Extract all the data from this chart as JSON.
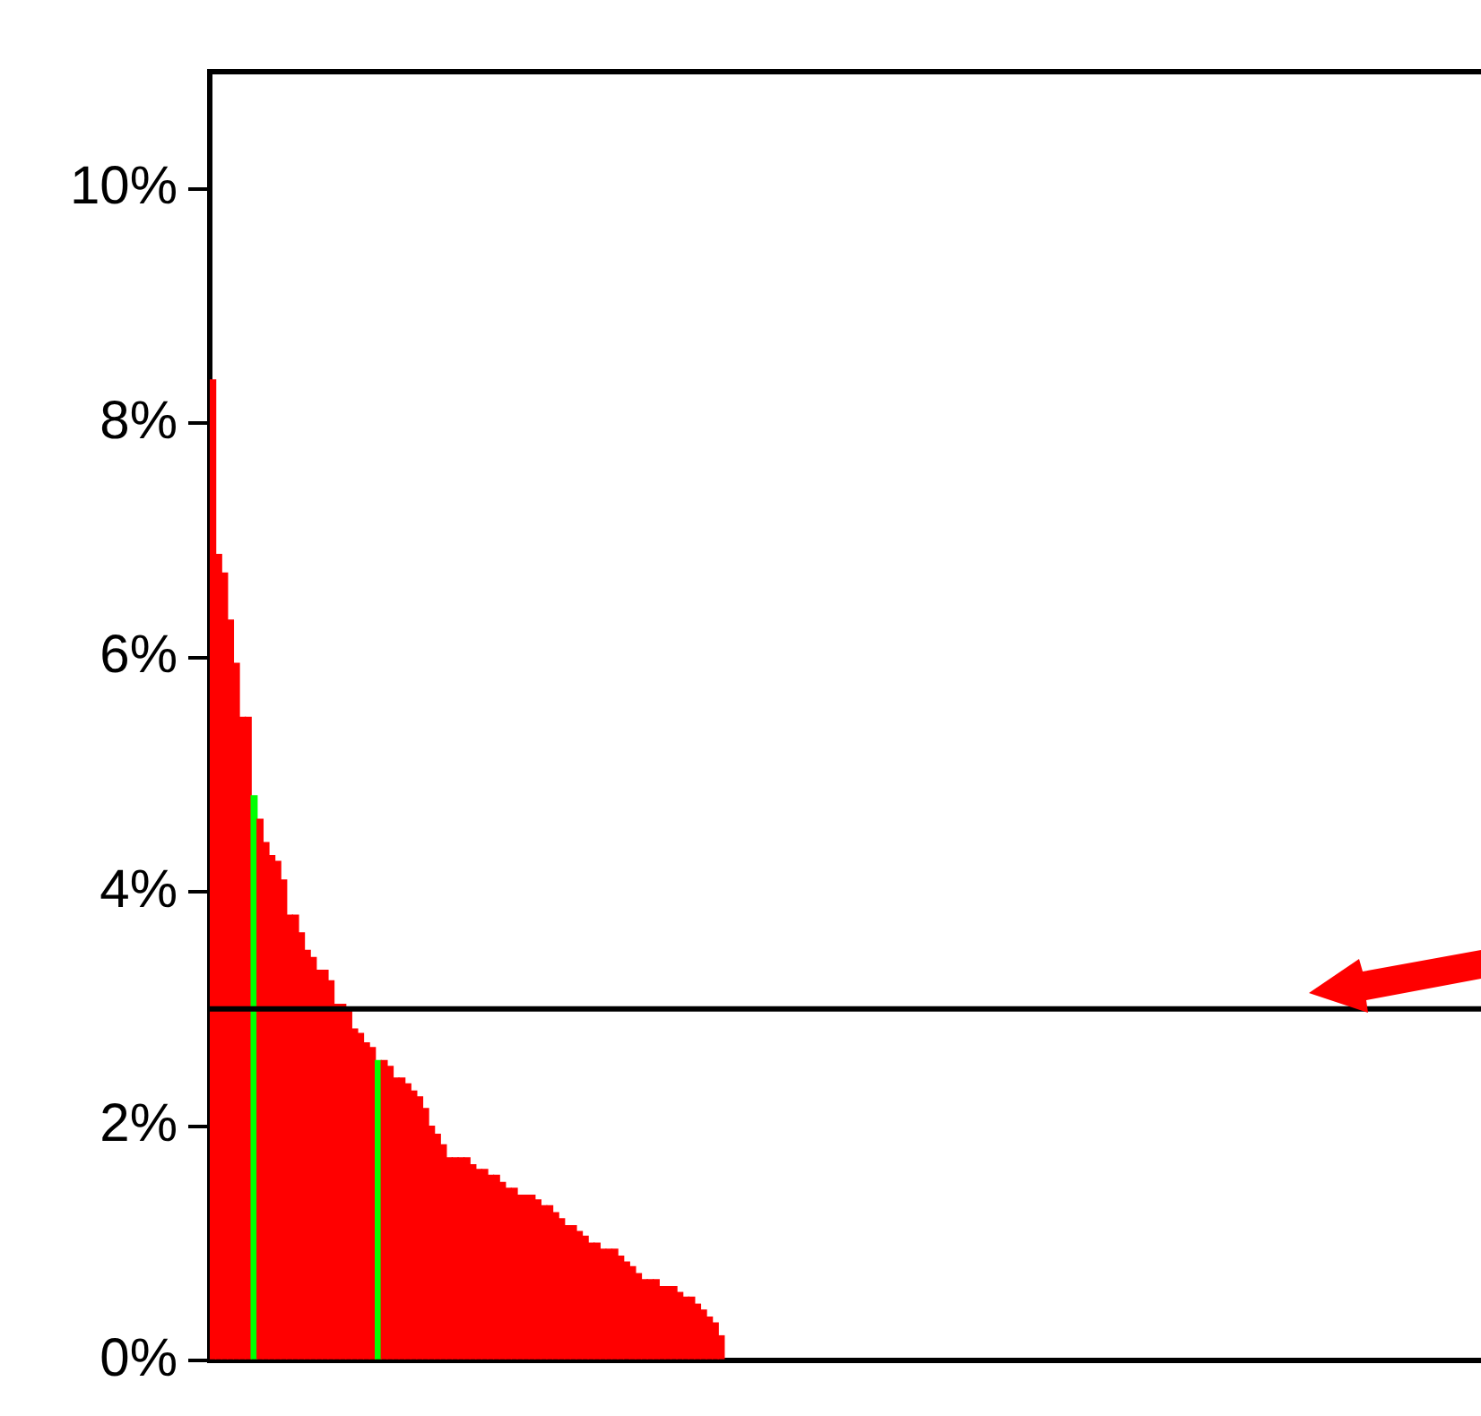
{
  "chart_data": {
    "type": "bar",
    "categories": [
      null,
      null,
      null,
      null,
      null,
      null,
      null,
      null,
      null,
      null,
      null,
      null,
      null,
      null,
      null,
      null,
      null,
      null,
      null,
      null,
      null,
      null,
      null,
      null,
      null,
      null,
      null,
      null,
      null,
      null,
      null,
      null,
      null,
      null,
      null,
      null,
      null,
      null,
      null,
      null,
      null,
      null,
      null,
      null,
      null,
      null,
      null,
      null,
      null,
      null,
      null,
      null,
      null,
      null,
      null,
      null,
      null,
      null,
      null,
      null,
      null,
      null,
      null,
      null,
      null,
      null,
      null,
      null,
      null,
      null,
      null,
      null,
      null,
      null,
      null,
      null,
      null,
      null,
      null,
      null,
      null,
      null,
      null,
      null,
      null,
      null,
      null,
      null,
      null,
      null,
      null,
      null,
      null,
      null,
      null,
      null,
      null,
      null,
      null,
      null,
      null,
      null,
      null,
      null,
      null,
      null,
      null,
      null,
      null,
      null,
      null,
      null,
      null,
      null,
      null,
      null,
      null,
      null,
      null,
      null,
      null,
      null,
      null,
      null,
      null,
      null,
      null,
      null,
      null,
      null,
      null,
      null,
      null,
      null,
      null,
      null,
      null,
      null,
      null,
      null,
      null,
      null,
      null,
      null,
      null,
      null,
      null,
      null,
      null,
      null,
      null,
      null,
      null,
      null,
      null,
      null,
      null,
      null,
      null,
      null,
      null,
      null,
      null,
      null,
      null,
      null,
      null,
      null,
      null,
      null,
      null,
      null,
      null,
      null,
      null,
      null,
      null,
      null,
      null,
      null,
      null,
      null,
      null,
      null,
      null,
      null,
      null,
      null,
      null,
      null,
      null,
      null,
      null,
      null,
      null,
      null,
      null,
      null,
      null,
      null,
      null,
      null,
      null,
      null,
      null,
      null,
      null,
      null,
      null,
      null,
      null,
      null,
      null,
      null,
      null
    ],
    "values": [
      8.37,
      6.88,
      6.72,
      6.32,
      5.95,
      5.49,
      5.49,
      4.82,
      4.62,
      4.42,
      4.31,
      4.26,
      4.1,
      3.8,
      3.8,
      3.65,
      3.5,
      3.44,
      3.33,
      3.33,
      3.24,
      3.04,
      3.04,
      2.99,
      2.83,
      2.79,
      2.71,
      2.67,
      2.56,
      2.56,
      2.51,
      2.41,
      2.41,
      2.36,
      2.3,
      2.25,
      2.15,
      2.0,
      1.93,
      1.84,
      1.73,
      1.73,
      1.73,
      1.73,
      1.67,
      1.63,
      1.63,
      1.58,
      1.58,
      1.52,
      1.47,
      1.47,
      1.41,
      1.41,
      1.41,
      1.37,
      1.32,
      1.32,
      1.26,
      1.21,
      1.15,
      1.15,
      1.1,
      1.06,
      1.0,
      1.0,
      0.95,
      0.95,
      0.95,
      0.89,
      0.84,
      0.8,
      0.74,
      0.69,
      0.69,
      0.69,
      0.63,
      0.63,
      0.63,
      0.58,
      0.54,
      0.54,
      0.48,
      0.43,
      0.37,
      0.32,
      0.21,
      null,
      null,
      null,
      null,
      null,
      null,
      null,
      null,
      null,
      null,
      null,
      null,
      null,
      null,
      null,
      null,
      null,
      null,
      null,
      null,
      null,
      null,
      null,
      null,
      null,
      null,
      null,
      null,
      null,
      null,
      null,
      null,
      null,
      null,
      null,
      null,
      null,
      null,
      null,
      null,
      null,
      null,
      null,
      null,
      null,
      null,
      null,
      null,
      null,
      null,
      null,
      null,
      null,
      null,
      null,
      null,
      null,
      null,
      null,
      null,
      null,
      null,
      null,
      null,
      null,
      null,
      null,
      null,
      null,
      null,
      null,
      null,
      null,
      null,
      null,
      null,
      null,
      null,
      null,
      null,
      null,
      null,
      null,
      null,
      null,
      null,
      null,
      null,
      null,
      null,
      null,
      null,
      null,
      null,
      null,
      null,
      null,
      null,
      null,
      null,
      null,
      null,
      null,
      null,
      null,
      null,
      null,
      null,
      null,
      null,
      null,
      null,
      null,
      null,
      null,
      null,
      null,
      null,
      null,
      null,
      null,
      null,
      null,
      null,
      null,
      null,
      null,
      null
    ],
    "colors": [
      "#ff0000",
      "#ff0000",
      "#ff0000",
      "#ff0000",
      "#ff0000",
      "#ff0000",
      "#ff0000",
      "#00ff00",
      "#ff0000",
      "#ff0000",
      "#ff0000",
      "#ff0000",
      "#ff0000",
      "#ff0000",
      "#ff0000",
      "#ff0000",
      "#ff0000",
      "#ff0000",
      "#ff0000",
      "#ff0000",
      "#ff0000",
      "#ff0000",
      "#ff0000",
      "#ff0000",
      "#ff0000",
      "#ff0000",
      "#ff0000",
      "#ff0000",
      "#00ff00",
      "#ff0000",
      "#ff0000",
      "#ff0000",
      "#ff0000",
      "#ff0000",
      "#ff0000",
      "#ff0000",
      "#ff0000",
      "#ff0000",
      "#ff0000",
      "#ff0000",
      "#ff0000",
      "#ff0000",
      "#ff0000",
      "#ff0000",
      "#ff0000",
      "#ff0000",
      "#ff0000",
      "#ff0000",
      "#ff0000",
      "#ff0000",
      "#ff0000",
      "#ff0000",
      "#ff0000",
      "#ff0000",
      "#ff0000",
      "#ff0000",
      "#ff0000",
      "#ff0000",
      "#ff0000",
      "#ff0000",
      "#ff0000",
      "#ff0000",
      "#ff0000",
      "#ff0000",
      "#ff0000",
      "#ff0000",
      "#ff0000",
      "#ff0000",
      "#ff0000",
      "#ff0000",
      "#ff0000",
      "#ff0000",
      "#ff0000",
      "#ff0000",
      "#ff0000",
      "#ff0000",
      "#ff0000",
      "#ff0000",
      "#ff0000",
      "#ff0000",
      "#ff0000",
      "#ff0000",
      "#ff0000",
      "#ff0000",
      "#ff0000",
      "#ff0000",
      "#ff0000",
      "#ff0000",
      "#ff0000",
      "#ff0000",
      "#ff0000",
      "#ff0000",
      "#ff0000",
      "#ff0000",
      "#ff0000",
      "#ff0000",
      "#ff0000",
      "#ff0000",
      "#ff0000",
      "#ff0000",
      "#ff0000",
      "#ff0000",
      "#ff0000",
      "#ff0000",
      "#ff0000",
      "#ff0000",
      "#ff0000",
      "#ff0000",
      "#ff0000",
      "#ff0000",
      "#ff0000",
      "#ff0000",
      "#ff0000",
      "#ff0000",
      "#ff0000",
      "#ff0000",
      "#ff0000",
      "#ff0000",
      "#ff0000",
      "#ff0000",
      "#ff0000",
      "#ff0000",
      "#ff0000",
      "#ff0000",
      "#ff0000",
      "#ff0000",
      "#ff0000",
      "#ff0000",
      "#ff0000",
      "#ff0000",
      "#ff0000",
      "#ff0000",
      "#ff0000",
      "#ff0000",
      "#ff0000",
      "#ff0000",
      "#ff0000",
      "#ff0000",
      "#ff0000",
      "#ff0000",
      "#ff0000",
      "#ff0000",
      "#ff0000",
      "#ff0000",
      "#ff0000",
      "#ff0000",
      "#ff0000",
      "#ff0000",
      "#ff0000",
      "#ff0000",
      "#ff0000",
      "#ff0000",
      "#ff0000",
      "#ff0000",
      "#ff0000",
      "#ff0000",
      "#ff0000",
      "#ff0000",
      "#ff0000",
      "#ff0000",
      "#ff0000",
      "#ff0000",
      "#ff0000",
      "#ff0000",
      "#ff0000",
      "#ff0000",
      "#ff0000",
      "#ff0000",
      "#ff0000",
      "#ff0000",
      "#ff0000",
      "#ff0000",
      "#ff0000",
      "#ff0000",
      "#ff0000",
      "#ff0000",
      "#ff0000",
      "#ff0000",
      "#ff0000",
      "#ff0000",
      "#ff0000",
      "#ff0000",
      "#ff0000",
      "#ff0000",
      "#ff0000",
      "#ff0000",
      "#ff0000",
      "#ff0000",
      "#ff0000",
      "#ff0000",
      "#ff0000",
      "#ff0000",
      "#ff0000",
      "#ff0000",
      "#ff0000",
      "#ff0000",
      "#ff0000",
      "#ff0000",
      "#ff0000",
      "#ff0000",
      "#ff0000",
      "#ff0000",
      "#ff0000",
      "#ff0000",
      "#ff0000",
      "#ff0000",
      "#ff0000",
      "#ff0000",
      "#ff0000",
      "#ff0000",
      "#ff0000",
      "#ff0000",
      "#ff0000",
      "#ff0000",
      "#ff0000"
    ],
    "ylim": [
      0,
      11
    ],
    "yticks": [
      {
        "value": 0,
        "label": "0%"
      },
      {
        "value": 2,
        "label": "2%"
      },
      {
        "value": 4,
        "label": "4%"
      },
      {
        "value": 6,
        "label": "6%"
      },
      {
        "value": 8,
        "label": "8%"
      },
      {
        "value": 10,
        "label": "10%"
      }
    ],
    "ref_lines": [
      {
        "axis": "y",
        "value": 3.0,
        "color": "#000000"
      }
    ]
  }
}
